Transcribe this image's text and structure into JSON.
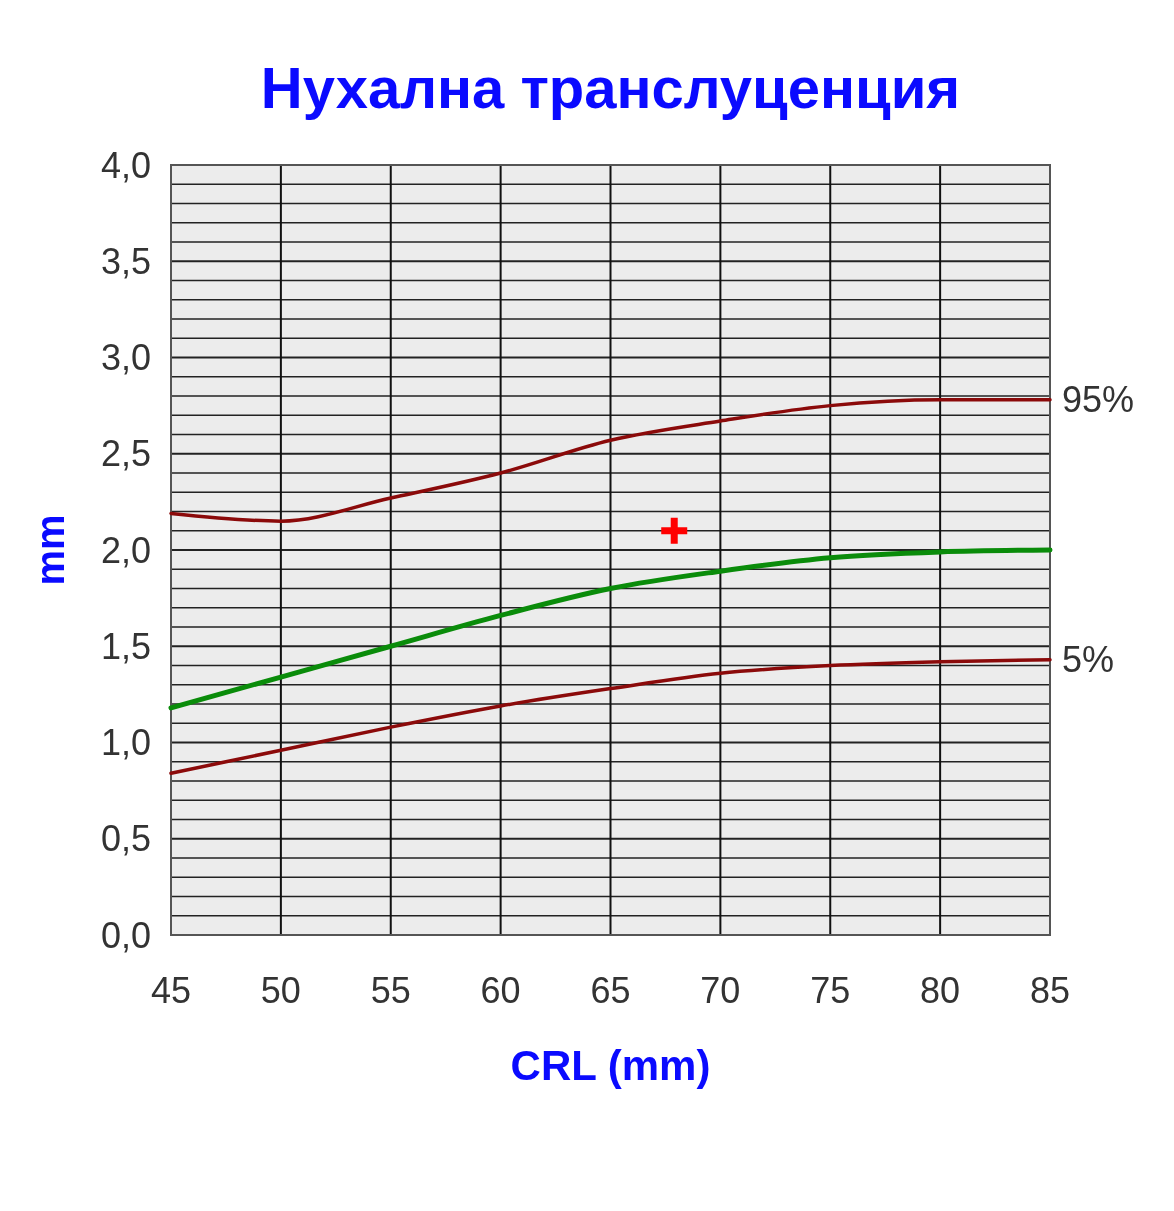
{
  "chart_data": {
    "type": "line",
    "title": "Нухална транслуценция",
    "xlabel": "CRL (mm)",
    "ylabel": "mm",
    "x": [
      45,
      50,
      55,
      60,
      65,
      70,
      75,
      80,
      85
    ],
    "series": [
      {
        "name": "95%",
        "color": "#8b0a0a",
        "values": [
          2.19,
          2.15,
          2.27,
          2.4,
          2.57,
          2.67,
          2.75,
          2.78,
          2.78
        ]
      },
      {
        "color": "#0a8c0a",
        "values": [
          1.18,
          1.34,
          1.5,
          1.66,
          1.8,
          1.89,
          1.96,
          1.99,
          2.0
        ]
      },
      {
        "name": "5%",
        "color": "#8b0a0a",
        "values": [
          0.84,
          0.96,
          1.08,
          1.19,
          1.28,
          1.36,
          1.4,
          1.42,
          1.43
        ]
      },
      {
        "type": "scatter",
        "marker": "cross",
        "color": "#ff0000",
        "x": [
          67.9
        ],
        "values": [
          2.1
        ]
      }
    ],
    "xlim": [
      45,
      85
    ],
    "xticks": [
      45,
      50,
      55,
      60,
      65,
      70,
      75,
      80,
      85
    ],
    "ylim": [
      0,
      4
    ],
    "yticks": [
      {
        "value": 0,
        "label": "0,0"
      },
      {
        "value": 0.1,
        "label": null
      },
      {
        "value": 0.2,
        "label": null
      },
      {
        "value": 0.3,
        "label": null
      },
      {
        "value": 0.4,
        "label": null
      },
      {
        "value": 0.5,
        "label": "0,5"
      },
      {
        "value": 0.6,
        "label": null
      },
      {
        "value": 0.7,
        "label": null
      },
      {
        "value": 0.8,
        "label": null
      },
      {
        "value": 0.9,
        "label": null
      },
      {
        "value": 1,
        "label": "1,0"
      },
      {
        "value": 1.1,
        "label": null
      },
      {
        "value": 1.2,
        "label": null
      },
      {
        "value": 1.3,
        "label": null
      },
      {
        "value": 1.4,
        "label": null
      },
      {
        "value": 1.5,
        "label": "1,5"
      },
      {
        "value": 1.6,
        "label": null
      },
      {
        "value": 1.7,
        "label": null
      },
      {
        "value": 1.8,
        "label": null
      },
      {
        "value": 1.9,
        "label": null
      },
      {
        "value": 2,
        "label": "2,0"
      },
      {
        "value": 2.1,
        "label": null
      },
      {
        "value": 2.2,
        "label": null
      },
      {
        "value": 2.3,
        "label": null
      },
      {
        "value": 2.4,
        "label": null
      },
      {
        "value": 2.5,
        "label": "2,5"
      },
      {
        "value": 2.6,
        "label": null
      },
      {
        "value": 2.7,
        "label": null
      },
      {
        "value": 2.8,
        "label": null
      },
      {
        "value": 2.9,
        "label": null
      },
      {
        "value": 3,
        "label": "3,0"
      },
      {
        "value": 3.1,
        "label": null
      },
      {
        "value": 3.2,
        "label": null
      },
      {
        "value": 3.3,
        "label": null
      },
      {
        "value": 3.4,
        "label": null
      },
      {
        "value": 3.5,
        "label": "3,5"
      },
      {
        "value": 3.6,
        "label": null
      },
      {
        "value": 3.7,
        "label": null
      },
      {
        "value": 3.8,
        "label": null
      },
      {
        "value": 3.9,
        "label": null
      },
      {
        "value": 4,
        "label": "4,0"
      }
    ],
    "grid": true,
    "marker": "none",
    "line_style": "solid"
  }
}
